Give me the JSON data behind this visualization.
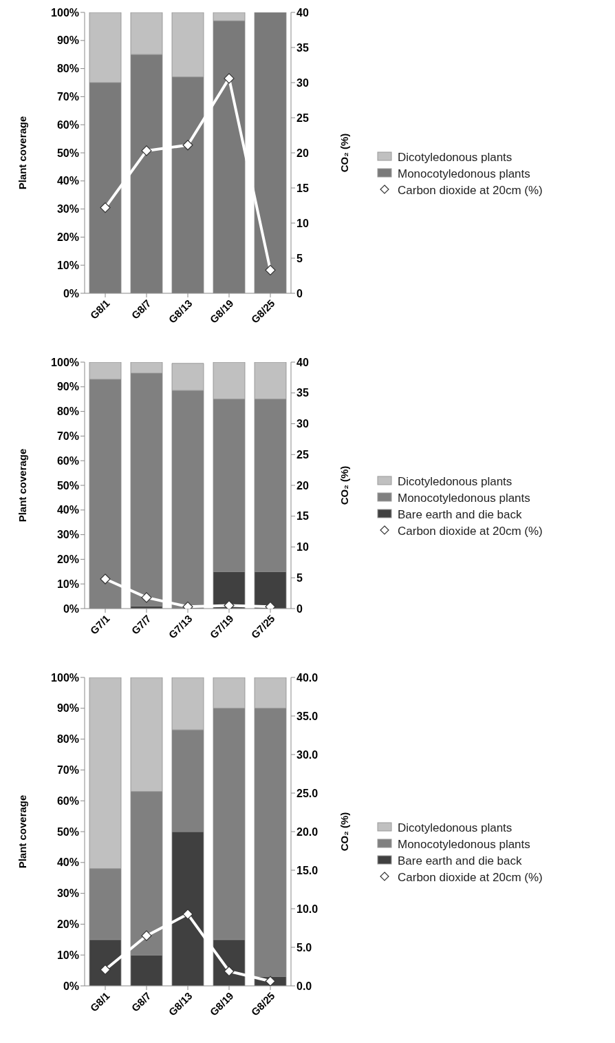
{
  "chart_data": [
    {
      "type": "bar",
      "stacked": true,
      "ylabel": "Plant coverage",
      "y2label": "CO₂ (%)",
      "categories": [
        "G8/1",
        "G8/7",
        "G8/13",
        "G8/19",
        "G8/25"
      ],
      "ylim": [
        0,
        100
      ],
      "yticks": [
        {
          "value": 0,
          "label": "0%"
        },
        {
          "value": 10,
          "label": "10%"
        },
        {
          "value": 20,
          "label": "20%"
        },
        {
          "value": 30,
          "label": "30%"
        },
        {
          "value": 40,
          "label": "40%"
        },
        {
          "value": 50,
          "label": "50%"
        },
        {
          "value": 60,
          "label": "60%"
        },
        {
          "value": 70,
          "label": "70%"
        },
        {
          "value": 80,
          "label": "80%"
        },
        {
          "value": 90,
          "label": "90%"
        },
        {
          "value": 100,
          "label": "100%"
        }
      ],
      "y2lim": [
        0,
        40
      ],
      "y2ticks": [
        0,
        5,
        10,
        15,
        20,
        25,
        30,
        35,
        40
      ],
      "legend": "right",
      "grid": false,
      "marker": "diamond",
      "line_style": "solid",
      "series": [
        {
          "name": "Monocotyledonous plants",
          "color": "#7a7a7a",
          "values": [
            75,
            85,
            77,
            97,
            100
          ]
        },
        {
          "name": "Dicotyledonous plants",
          "color": "#c0c0c0",
          "values": [
            25,
            15,
            23,
            3,
            0
          ]
        },
        {
          "name": "Carbon dioxide at 20cm (%)",
          "type": "line",
          "axis": "y2",
          "color": "#ffffff",
          "values": [
            12.2,
            20.3,
            21.1,
            30.6,
            3.3
          ]
        }
      ]
    },
    {
      "type": "bar",
      "stacked": true,
      "ylabel": "Plant coverage",
      "y2label": "CO₂ (%)",
      "categories": [
        "G7/1",
        "G7/7",
        "G7/13",
        "G7/19",
        "G7/25"
      ],
      "ylim": [
        0,
        100
      ],
      "yticks": [
        {
          "value": 0,
          "label": "0%"
        },
        {
          "value": 10,
          "label": "10%"
        },
        {
          "value": 20,
          "label": "20%"
        },
        {
          "value": 30,
          "label": "30%"
        },
        {
          "value": 40,
          "label": "40%"
        },
        {
          "value": 50,
          "label": "50%"
        },
        {
          "value": 60,
          "label": "60%"
        },
        {
          "value": 70,
          "label": "70%"
        },
        {
          "value": 80,
          "label": "80%"
        },
        {
          "value": 90,
          "label": "90%"
        },
        {
          "value": 100,
          "label": "100%"
        }
      ],
      "y2lim": [
        0,
        40
      ],
      "y2ticks": [
        0,
        5,
        10,
        15,
        20,
        25,
        30,
        35,
        40
      ],
      "legend": "right",
      "grid": false,
      "marker": "diamond",
      "line_style": "solid",
      "series": [
        {
          "name": "Bare earth and die back",
          "color": "#404040",
          "values": [
            0,
            1,
            null,
            15,
            15
          ]
        },
        {
          "name": "Monocotyledonous plants",
          "color": "#808080",
          "values": [
            93,
            94.5,
            88.5,
            70,
            70
          ]
        },
        {
          "name": "Dicotyledonous plants",
          "color": "#c0c0c0",
          "values": [
            7,
            4.5,
            11,
            15,
            15
          ]
        },
        {
          "name": "Carbon dioxide at 20cm (%)",
          "type": "line",
          "axis": "y2",
          "color": "#ffffff",
          "values": [
            4.8,
            1.8,
            0.3,
            0.5,
            0.3
          ]
        }
      ]
    },
    {
      "type": "bar",
      "stacked": true,
      "ylabel": "Plant coverage",
      "y2label": "CO₂ (%)",
      "categories": [
        "G8/1",
        "G8/7",
        "G8/13",
        "G8/19",
        "G8/25"
      ],
      "ylim": [
        0,
        100
      ],
      "yticks": [
        {
          "value": 0,
          "label": "0%"
        },
        {
          "value": 10,
          "label": "10%"
        },
        {
          "value": 20,
          "label": "20%"
        },
        {
          "value": 30,
          "label": "30%"
        },
        {
          "value": 40,
          "label": "40%"
        },
        {
          "value": 50,
          "label": "50%"
        },
        {
          "value": 60,
          "label": "60%"
        },
        {
          "value": 70,
          "label": "70%"
        },
        {
          "value": 80,
          "label": "80%"
        },
        {
          "value": 90,
          "label": "90%"
        },
        {
          "value": 100,
          "label": "100%"
        }
      ],
      "y2lim": [
        0,
        40
      ],
      "y2ticks": [
        {
          "value": 0,
          "label": "0.0"
        },
        {
          "value": 5,
          "label": "5.0"
        },
        {
          "value": 10,
          "label": "10.0"
        },
        {
          "value": 15,
          "label": "15.0"
        },
        {
          "value": 20,
          "label": "20.0"
        },
        {
          "value": 25,
          "label": "25.0"
        },
        {
          "value": 30,
          "label": "30.0"
        },
        {
          "value": 35,
          "label": "35.0"
        },
        {
          "value": 40,
          "label": "40.0"
        }
      ],
      "legend": "right",
      "grid": false,
      "marker": "diamond",
      "line_style": "solid",
      "series": [
        {
          "name": "Bare earth and die back",
          "color": "#404040",
          "values": [
            15,
            10,
            50,
            15,
            3
          ]
        },
        {
          "name": "Monocotyledonous plants",
          "color": "#808080",
          "values": [
            23,
            53,
            33,
            75,
            87
          ]
        },
        {
          "name": "Dicotyledonous plants",
          "color": "#c0c0c0",
          "values": [
            62,
            37,
            17,
            10,
            10
          ]
        },
        {
          "name": "Carbon dioxide at 20cm (%)",
          "type": "line",
          "axis": "y2",
          "color": "#ffffff",
          "values": [
            2.1,
            6.5,
            9.3,
            1.9,
            0.6
          ]
        }
      ]
    }
  ]
}
